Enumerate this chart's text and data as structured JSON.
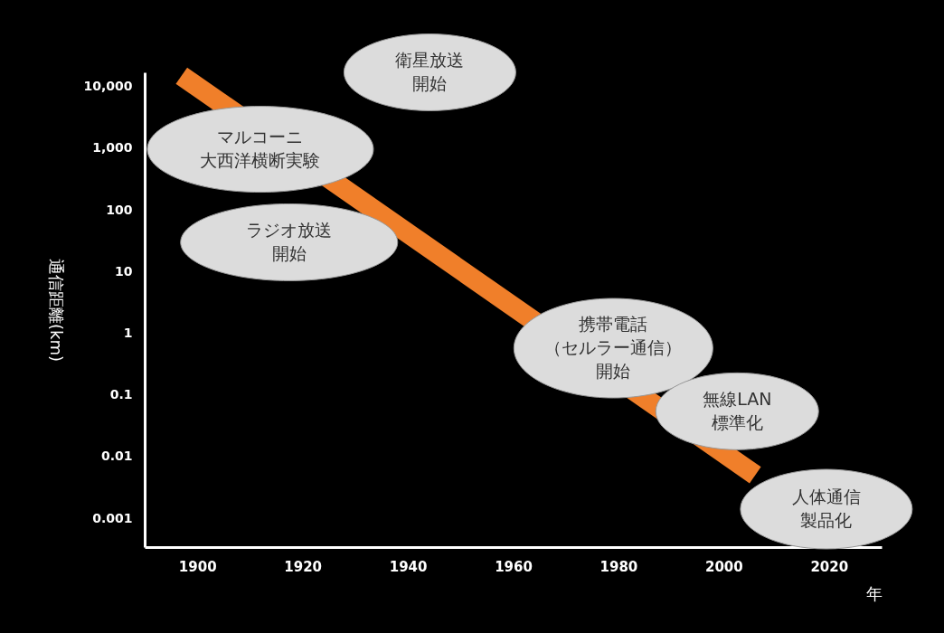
{
  "chart_data": {
    "type": "line",
    "xlabel": "年",
    "ylabel": "通信距離(km)",
    "log": true,
    "grid": false,
    "marker": "none",
    "line_style": "solid",
    "xlim": [
      1890,
      2030
    ],
    "xticks": [
      1900,
      1920,
      1940,
      1960,
      1980,
      2000,
      2020
    ],
    "ylim": [
      0.00034,
      17000
    ],
    "yticks": [
      {
        "value": 0.001,
        "label": "0.001"
      },
      {
        "value": 0.01,
        "label": "0.01"
      },
      {
        "value": 0.1,
        "label": "0.1"
      },
      {
        "value": 1,
        "label": "1"
      },
      {
        "value": 10,
        "label": "10"
      },
      {
        "value": 100,
        "label": "100"
      },
      {
        "value": 1000,
        "label": "1,000"
      },
      {
        "value": 10000,
        "label": "10,000"
      }
    ],
    "series": [
      {
        "color": "#f07f2a",
        "x": [
          1897,
          2006
        ],
        "values": [
          15000,
          0.005
        ]
      }
    ],
    "annotations": [
      "衛星放送開始",
      "マルコーニ大西洋横断実験",
      "ラジオ放送開始",
      "携帯電話（セルラー通信）開始",
      "無線LAN標準化",
      "人体通信製品化"
    ]
  }
}
